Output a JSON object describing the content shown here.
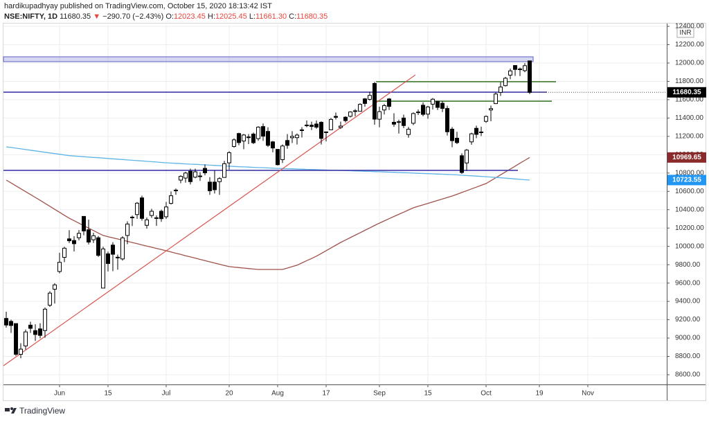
{
  "chart_data": {
    "type": "candlestick",
    "title": "hardikupadhyay published on TradingView.com, October 15, 2020 18:13:42 IST",
    "symbol": "NSE:NIFTY, 1D",
    "last": "11680.35",
    "change_arrow": "▼",
    "change": "−290.70 (−2.43%)",
    "ohlc_labels": [
      "O:",
      "H:",
      "L:",
      "C:"
    ],
    "ohlc_values": [
      "12023.45",
      "12025.45",
      "11661.30",
      "11680.35"
    ],
    "currency": "INR",
    "brand": "TradingView",
    "categories": [
      null,
      null,
      null,
      null,
      null,
      null,
      null,
      null,
      null,
      null,
      null,
      "Jun",
      null,
      null,
      null,
      null,
      null,
      null,
      null,
      null,
      null,
      "15",
      null,
      null,
      null,
      null,
      null,
      null,
      null,
      null,
      null,
      null,
      null,
      "Jul",
      null,
      null,
      null,
      null,
      null,
      null,
      null,
      null,
      null,
      null,
      null,
      null,
      "20",
      null,
      null,
      null,
      null,
      null,
      null,
      null,
      null,
      null,
      "Aug",
      null,
      null,
      null,
      null,
      null,
      null,
      null,
      null,
      null,
      "17",
      null,
      null,
      null,
      null,
      null,
      null,
      null,
      null,
      null,
      null,
      "Sep",
      null,
      null,
      null,
      null,
      null,
      null,
      null,
      null,
      null,
      "15",
      null,
      null,
      null,
      null,
      null,
      null,
      null,
      null,
      null,
      null,
      null,
      "Oct",
      null,
      null,
      null,
      null,
      null,
      null,
      null,
      null,
      null,
      null,
      "19",
      null,
      null,
      null,
      null,
      null,
      null,
      null,
      null,
      null,
      "Nov"
    ],
    "open": [
      9214,
      9182,
      9158,
      8823,
      8914,
      9141,
      9081,
      9100,
      9082,
      9358,
      9533,
      9726,
      9880,
      10082,
      10064,
      10094,
      10327,
      10181,
      10072,
      10094,
      9545,
      9919,
      10014,
      9877,
      9863,
      10119,
      10319,
      10347,
      10529,
      10230,
      10337,
      10311,
      10383,
      10323,
      10469,
      10614,
      10723,
      10745,
      10819,
      10755,
      10764,
      10851,
      10701,
      10701,
      10706,
      10752,
      10911,
      11090,
      11231,
      11149,
      11186,
      11225,
      11175,
      11307,
      11254,
      11140,
      11058,
      10946,
      11155,
      11185,
      11186,
      11271,
      11323,
      11322,
      11335,
      11353,
      11249,
      11272,
      11418,
      11297,
      11409,
      11419,
      11479,
      11474,
      11609,
      11604,
      11777,
      11387,
      11488,
      11608,
      11354,
      11360,
      11400,
      11220,
      11343,
      11466,
      11540,
      11443,
      11551,
      11582,
      11561,
      11504,
      11279,
      11180,
      10989,
      10910,
      11140,
      11288,
      11244,
      11364,
      11488,
      11557,
      11680,
      11753,
      11868,
      11973,
      11935,
      11917,
      12023.45,
      null,
      null,
      null,
      null,
      null,
      null,
      null,
      null,
      null,
      null,
      null,
      null
    ],
    "high": [
      9287,
      9200,
      9158,
      8944,
      9093,
      9178,
      9150,
      9162,
      9334,
      9511,
      9598,
      9931,
      9996,
      10177,
      10111,
      10178,
      10328,
      10291,
      10149,
      10113,
      9996,
      9943,
      10046,
      9911,
      10111,
      10273,
      10337,
      10484,
      10553,
      10315,
      10409,
      10338,
      10401,
      10485,
      10599,
      10631,
      10775,
      10814,
      10847,
      10848,
      10809,
      10894,
      10755,
      10827,
      10755,
      10933,
      11038,
      11179,
      11240,
      11226,
      11225,
      11241,
      11310,
      11341,
      11299,
      11150,
      11058,
      11112,
      11225,
      11257,
      11231,
      11300,
      11374,
      11360,
      11373,
      11364,
      11249,
      11401,
      11460,
      11361,
      11419,
      11474,
      11497,
      11561,
      11618,
      11686,
      11794,
      11524,
      11554,
      11618,
      11452,
      11382,
      11437,
      11303,
      11462,
      11493,
      11571,
      11533,
      11618,
      11587,
      11585,
      11535,
      11302,
      11250,
      11015,
      11061,
      11240,
      11317,
      11306,
      11428,
      11536,
      11680,
      11790,
      11849,
      11939,
      11974,
      11951,
      11998,
      12025.45,
      null,
      null,
      null,
      null,
      null,
      null,
      null,
      null,
      null,
      null,
      null,
      null
    ],
    "low": [
      9114,
      9056,
      8806,
      8779,
      8874,
      9056,
      8968,
      8997,
      9004,
      9340,
      9376,
      9706,
      9828,
      10036,
      9945,
      10066,
      10121,
      10021,
      10037,
      9885,
      9544,
      9727,
      9729,
      9745,
      9845,
      10024,
      10222,
      10301,
      10281,
      10194,
      10311,
      10224,
      10268,
      10299,
      10457,
      10562,
      10689,
      10696,
      10676,
      10743,
      10714,
      10775,
      10562,
      10577,
      10562,
      10749,
      10837,
      11076,
      11103,
      11060,
      11116,
      11116,
      11152,
      11151,
      11084,
      11026,
      10883,
      10909,
      11065,
      11127,
      11111,
      11188,
      11300,
      11269,
      11283,
      11111,
      11145,
      11267,
      11384,
      11281,
      11351,
      11407,
      11420,
      11474,
      11524,
      11589,
      11326,
      11299,
      11439,
      11488,
      11304,
      11231,
      11290,
      11185,
      11323,
      11433,
      11419,
      11393,
      11493,
      11487,
      11465,
      11209,
      11082,
      11116,
      10790,
      10823,
      11108,
      11180,
      11204,
      11347,
      11365,
      11554,
      11641,
      11745,
      11823,
      11860,
      11858,
      11900,
      11661.3,
      null,
      null,
      null,
      null,
      null,
      null,
      null,
      null,
      null,
      null,
      null,
      null
    ],
    "close": [
      9142,
      9137,
      8823,
      8879,
      9067,
      9106,
      9039,
      9029,
      9315,
      9490,
      9580,
      9826,
      9980,
      10061,
      10029,
      10142,
      10168,
      10047,
      10116,
      9902,
      9972,
      9813,
      9914,
      9882,
      10092,
      10244,
      10312,
      10471,
      10305,
      10289,
      10383,
      10312,
      10302,
      10430,
      10552,
      10608,
      10764,
      10800,
      10706,
      10813,
      10768,
      10802,
      10607,
      10618,
      10740,
      10902,
      11022,
      11162,
      11132,
      11215,
      11194,
      11131,
      11300,
      11202,
      11102,
      11073,
      10891,
      11095,
      11102,
      11200,
      11214,
      11270,
      11322,
      11308,
      11300,
      11178,
      11247,
      11385,
      11408,
      11312,
      11372,
      11466,
      11472,
      11549,
      11559,
      11647,
      11388,
      11470,
      11535,
      11527,
      11333,
      11355,
      11318,
      11278,
      11449,
      11464,
      11440,
      11521,
      11605,
      11516,
      11505,
      11250,
      11153,
      11132,
      10806,
      11050,
      11228,
      11222,
      11248,
      11417,
      11503,
      11662,
      11738,
      11834,
      11914,
      11930,
      11934,
      11971,
      11680.35,
      null,
      null,
      null,
      null,
      null,
      null,
      null,
      null,
      null,
      null,
      null,
      null
    ],
    "up_color": "#ffffff",
    "down_color": "#000000",
    "series": [
      {
        "color": "#a0524a",
        "values": [
          10723,
          10692,
          10660,
          10629,
          10597,
          10566,
          10534,
          10502,
          10469,
          10437,
          10404,
          10372,
          10339,
          10307,
          10280,
          10253,
          10226,
          10199,
          10173,
          10146,
          10119,
          10106,
          10093,
          10081,
          10068,
          10055,
          10042,
          10029,
          10016,
          10004,
          9991,
          9978,
          9965,
          9952,
          9939,
          9925,
          9912,
          9898,
          9885,
          9872,
          9858,
          9845,
          9831,
          9818,
          9805,
          9792,
          9779,
          9774,
          9769,
          9763,
          9758,
          9753,
          9748,
          9748,
          9748,
          9748,
          9748,
          9748,
          9763,
          9779,
          9794,
          9819,
          9844,
          9868,
          9893,
          9923,
          9953,
          9983,
          10013,
          10043,
          10069,
          10096,
          10122,
          10148,
          10175,
          10201,
          10228,
          10254,
          10278,
          10302,
          10326,
          10350,
          10373,
          10397,
          10421,
          10437,
          10453,
          10469,
          10485,
          10501,
          10517,
          10533,
          10549,
          10568,
          10588,
          10607,
          10627,
          10646,
          10666,
          10685,
          10717,
          10748,
          10780,
          10812,
          10843,
          10875,
          10907,
          10938,
          10969.65,
          null,
          null,
          null,
          null,
          null,
          null,
          null,
          null,
          null,
          null,
          null,
          null
        ],
        "tag_color": "#8b2a2a"
      },
      {
        "color": "#5fb4e8",
        "values": [
          11086,
          11079,
          11071,
          11064,
          11056,
          11049,
          11042,
          11034,
          11027,
          11019,
          11012,
          11005,
          10997,
          10990,
          10986,
          10982,
          10978,
          10974,
          10970,
          10967,
          10963,
          10959,
          10955,
          10951,
          10947,
          10943,
          10939,
          10935,
          10932,
          10928,
          10924,
          10920,
          10916,
          10912,
          10909,
          10906,
          10903,
          10900,
          10897,
          10895,
          10892,
          10889,
          10886,
          10883,
          10880,
          10877,
          10874,
          10872,
          10869,
          10867,
          10865,
          10862,
          10860,
          10858,
          10856,
          10853,
          10851,
          10849,
          10847,
          10846,
          10844,
          10842,
          10840,
          10839,
          10837,
          10835,
          10833,
          10832,
          10830,
          10828,
          10826,
          10825,
          10823,
          10821,
          10819,
          10818,
          10816,
          10814,
          10812,
          10810,
          10808,
          10806,
          10804,
          10802,
          10800,
          10797,
          10795,
          10793,
          10791,
          10789,
          10787,
          10785,
          10783,
          10780,
          10776,
          10773,
          10770,
          10767,
          10763,
          10760,
          10756,
          10752,
          10748,
          10744,
          10740,
          10736,
          10731,
          10727,
          10723.55,
          null,
          null,
          null,
          null,
          null,
          null,
          null,
          null,
          null,
          null,
          null,
          null
        ],
        "tag_color": "#2196f3"
      }
    ],
    "zone": {
      "low": 12015,
      "high": 12068,
      "color": "#5b5fc7"
    },
    "levels": [
      {
        "value": 11682,
        "color": "#3f3aa8"
      },
      {
        "value": 10829,
        "color": "#3f3aa8"
      },
      {
        "value": 11796,
        "color": "#3d7a2f"
      },
      {
        "value": 11584,
        "color": "#3d7a2f"
      }
    ],
    "trendline": {
      "start": 8698,
      "end": 11871,
      "color": "#d9534f"
    },
    "ylim": [
      8494,
      12423
    ],
    "yticks": [
      {
        "value": 8600,
        "label": "8600.00"
      },
      {
        "value": 8800,
        "label": "8800.00"
      },
      {
        "value": 9000,
        "label": "9000.00"
      },
      {
        "value": 9200,
        "label": "9200.00"
      },
      {
        "value": 9400,
        "label": "9400.00"
      },
      {
        "value": 9600,
        "label": "9600.00"
      },
      {
        "value": 9800,
        "label": "9800.00"
      },
      {
        "value": 10000,
        "label": "10000.00"
      },
      {
        "value": 10200,
        "label": "10200.00"
      },
      {
        "value": 10400,
        "label": "10400.00"
      },
      {
        "value": 10600,
        "label": "10600.00"
      },
      {
        "value": 10800,
        "label": "10800.00"
      },
      {
        "value": 11000,
        "label": "11000.00"
      },
      {
        "value": 11200,
        "label": "11200.00"
      },
      {
        "value": 11400,
        "label": "11400.00"
      },
      {
        "value": 11600,
        "label": "11600.00"
      },
      {
        "value": 11800,
        "label": "11800.00"
      },
      {
        "value": 12000,
        "label": "12000.00"
      },
      {
        "value": 12200,
        "label": "12200.00"
      },
      {
        "value": 12400,
        "label": "12400.00"
      }
    ],
    "grid": true
  }
}
